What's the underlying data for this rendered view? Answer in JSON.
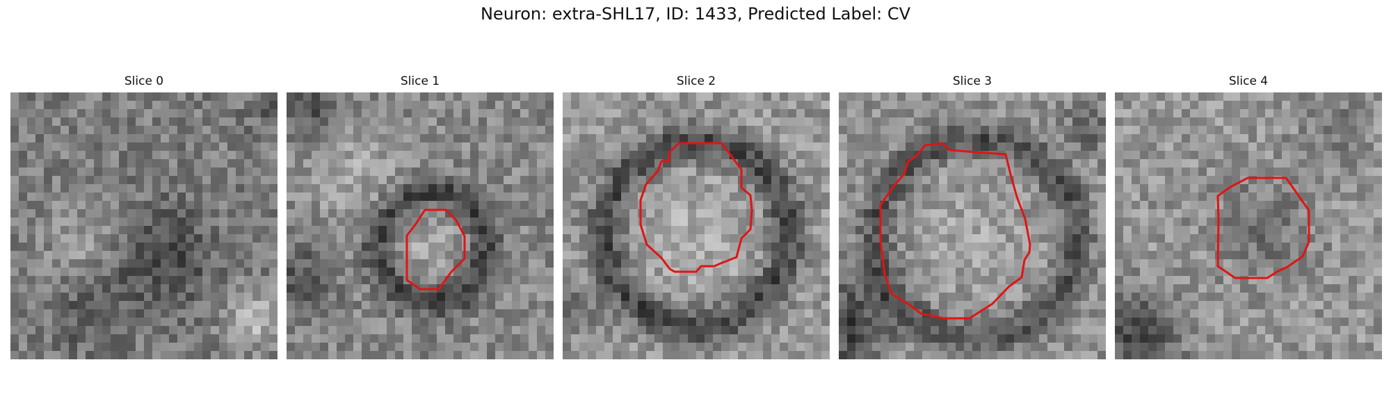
{
  "figure": {
    "title": "Neuron: extra-SHL17, ID: 1433, Predicted Label: CV"
  },
  "panels": [
    {
      "title": "Slice 0"
    },
    {
      "title": "Slice 1"
    },
    {
      "title": "Slice 2"
    },
    {
      "title": "Slice 3"
    },
    {
      "title": "Slice 4"
    }
  ],
  "colors": {
    "outline": "#e01414",
    "background": "#ffffff"
  }
}
